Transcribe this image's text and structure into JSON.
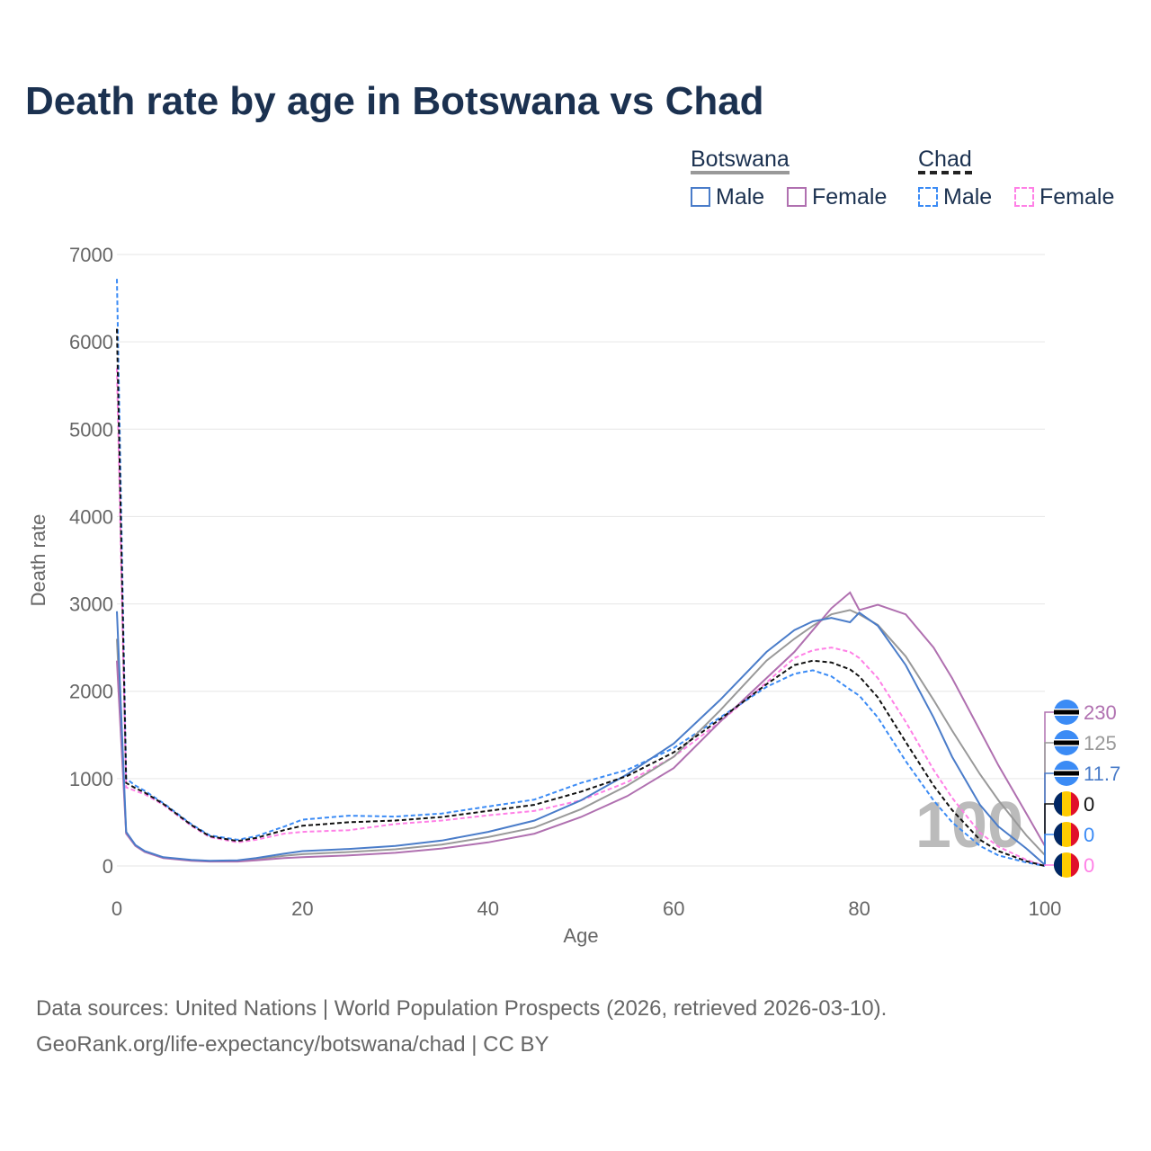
{
  "title": "Death rate by age in Botswana vs Chad",
  "legend": {
    "groups": [
      {
        "name": "Botswana",
        "items": [
          "Male",
          "Female"
        ]
      },
      {
        "name": "Chad",
        "items": [
          "Male",
          "Female"
        ]
      }
    ]
  },
  "footer": [
    "Data sources: United Nations | World Population Prospects (2026, retrieved 2026-03-10).",
    "GeoRank.org/life-expectancy/botswana/chad | CC BY"
  ],
  "watermark": "100",
  "end_labels": [
    {
      "flag": "botswana",
      "value": "230",
      "color": "#b070b0"
    },
    {
      "flag": "botswana",
      "value": "125",
      "color": "#999999"
    },
    {
      "flag": "botswana",
      "value": "11.7",
      "color": "#4a7cc9"
    },
    {
      "flag": "chad",
      "value": "0",
      "color": "#111111"
    },
    {
      "flag": "chad",
      "value": "0",
      "color": "#3b8bf5"
    },
    {
      "flag": "chad",
      "value": "0",
      "color": "#ff80e6"
    }
  ],
  "chart_data": {
    "type": "line",
    "title": "Death rate by age in Botswana vs Chad",
    "xlabel": "Age",
    "ylabel": "Death rate",
    "xlim": [
      0,
      100
    ],
    "ylim": [
      0,
      7000
    ],
    "xticks": [
      0,
      20,
      40,
      60,
      80,
      100
    ],
    "yticks": [
      0,
      1000,
      2000,
      3000,
      4000,
      5000,
      6000,
      7000
    ],
    "grid": true,
    "x": [
      0,
      1,
      2,
      3,
      5,
      8,
      10,
      13,
      15,
      18,
      20,
      25,
      30,
      35,
      40,
      45,
      50,
      55,
      60,
      65,
      70,
      73,
      75,
      77,
      79,
      80,
      82,
      85,
      88,
      90,
      93,
      95,
      98,
      100
    ],
    "series": [
      {
        "name": "Chad Female",
        "color": "#ff80e6",
        "dash": true,
        "values": [
          5700,
          900,
          860,
          820,
          700,
          460,
          330,
          270,
          300,
          370,
          390,
          410,
          480,
          520,
          580,
          630,
          750,
          960,
          1250,
          1650,
          2100,
          2380,
          2470,
          2500,
          2450,
          2380,
          2150,
          1650,
          1100,
          780,
          380,
          220,
          70,
          0
        ]
      },
      {
        "name": "Chad Male",
        "color": "#3b8bf5",
        "dash": true,
        "values": [
          6720,
          1000,
          920,
          860,
          720,
          480,
          350,
          300,
          340,
          450,
          530,
          575,
          565,
          600,
          680,
          760,
          950,
          1100,
          1350,
          1700,
          2050,
          2200,
          2240,
          2170,
          2020,
          1950,
          1700,
          1200,
          750,
          500,
          230,
          120,
          40,
          0
        ]
      },
      {
        "name": "Botswana Total",
        "color": "#999999",
        "dash": false,
        "values": [
          2600,
          380,
          235,
          165,
          95,
          65,
          55,
          58,
          78,
          115,
          135,
          160,
          190,
          245,
          330,
          440,
          650,
          920,
          1250,
          1780,
          2350,
          2600,
          2750,
          2880,
          2930,
          2880,
          2760,
          2400,
          1900,
          1550,
          1050,
          750,
          350,
          125
        ]
      },
      {
        "name": "Botswana Female",
        "color": "#b070b0",
        "dash": false,
        "values": [
          2350,
          370,
          230,
          160,
          90,
          60,
          50,
          50,
          65,
          90,
          100,
          120,
          150,
          200,
          270,
          370,
          560,
          800,
          1120,
          1650,
          2150,
          2450,
          2700,
          2950,
          3130,
          2930,
          2990,
          2880,
          2500,
          2150,
          1550,
          1150,
          600,
          230
        ]
      },
      {
        "name": "Botswana Male",
        "color": "#4a7cc9",
        "dash": false,
        "values": [
          2915,
          390,
          240,
          170,
          100,
          70,
          60,
          65,
          90,
          140,
          170,
          195,
          230,
          290,
          390,
          520,
          750,
          1050,
          1400,
          1900,
          2450,
          2700,
          2800,
          2840,
          2790,
          2900,
          2750,
          2300,
          1700,
          1250,
          700,
          450,
          200,
          12
        ]
      },
      {
        "name": "Chad Total",
        "color": "#111111",
        "dash": true,
        "values": [
          6150,
          950,
          890,
          840,
          710,
          470,
          340,
          285,
          320,
          410,
          460,
          500,
          520,
          560,
          630,
          700,
          850,
          1030,
          1300,
          1680,
          2080,
          2300,
          2350,
          2330,
          2250,
          2170,
          1930,
          1420,
          920,
          640,
          300,
          170,
          55,
          0
        ]
      }
    ]
  }
}
